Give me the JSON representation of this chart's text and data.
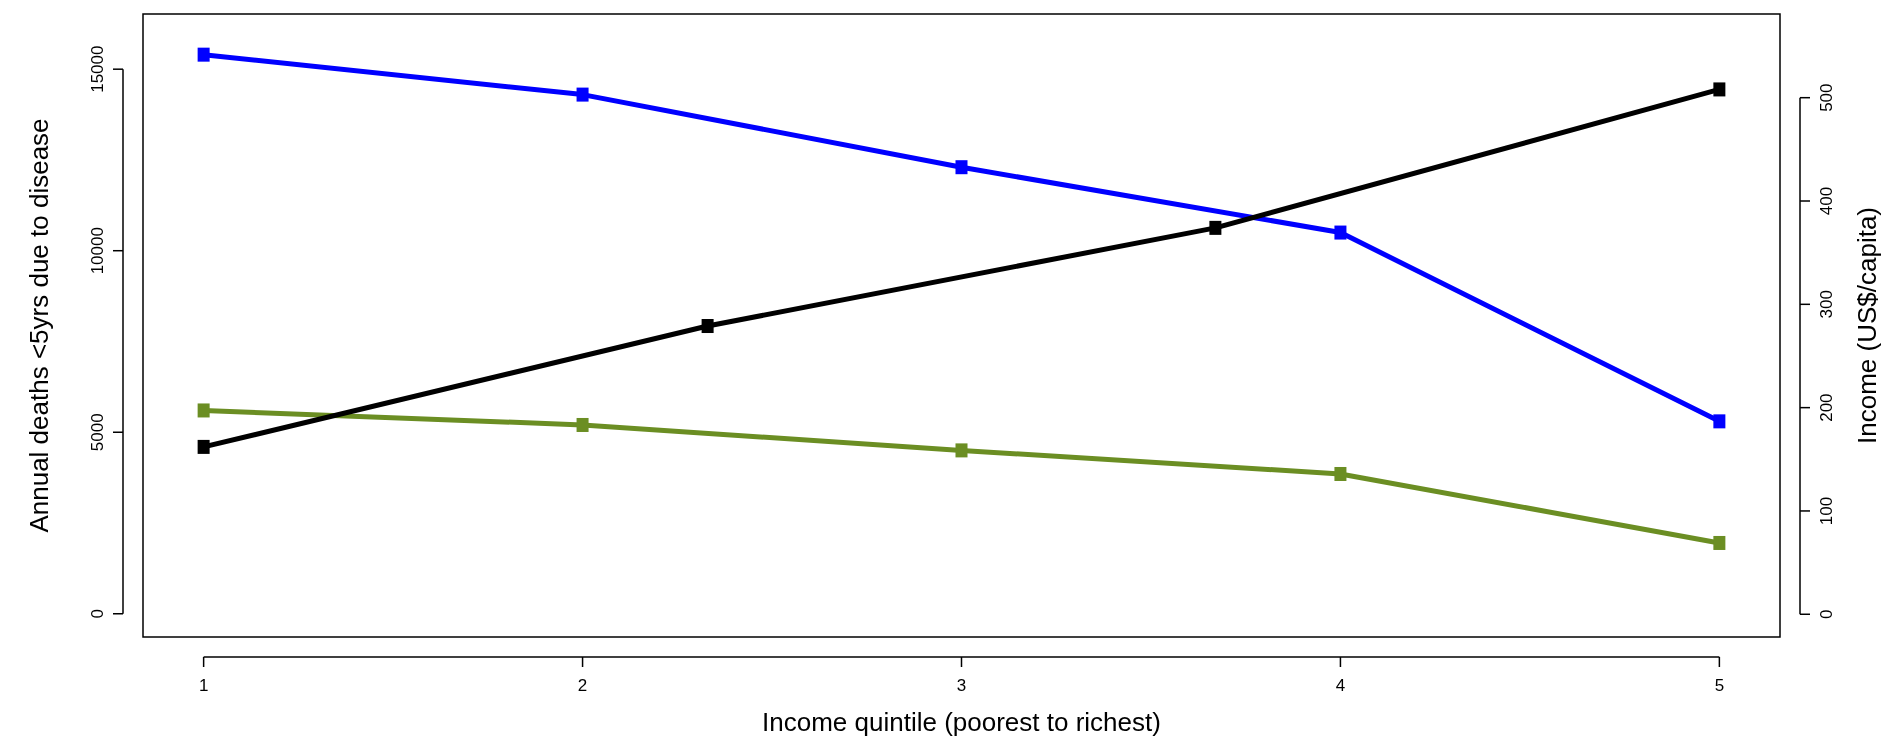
{
  "chart_data": {
    "type": "line",
    "xlabel": "Income quintile (poorest to richest)",
    "ylabel": "Annual deaths <5yrs due to disease",
    "y2label": "Income (US$/capita)",
    "xlim": [
      0.84,
      5.16
    ],
    "xticks": [
      1,
      2,
      3,
      4,
      5
    ],
    "ylim": [
      -640,
      16520
    ],
    "yticks": [
      0,
      5000,
      10000,
      15000
    ],
    "y2lim": [
      -22,
      581
    ],
    "y2ticks": [
      0,
      100,
      200,
      300,
      400,
      500
    ],
    "marker": "square",
    "line_style": "solid",
    "grid": false,
    "series": [
      {
        "color": "#0000ff",
        "x": [
          1,
          2,
          3,
          4,
          5
        ],
        "values": [
          15400,
          14300,
          12300,
          10500,
          5300
        ]
      },
      {
        "color": "#6b8e23",
        "x": [
          1,
          2,
          3,
          4,
          5
        ],
        "values": [
          5600,
          5200,
          4500,
          3850,
          1950
        ]
      },
      {
        "color": "#000000",
        "axis": "y2",
        "x": [
          1,
          2.33,
          3.67,
          5
        ],
        "values": [
          162,
          279,
          374,
          508
        ]
      }
    ]
  }
}
